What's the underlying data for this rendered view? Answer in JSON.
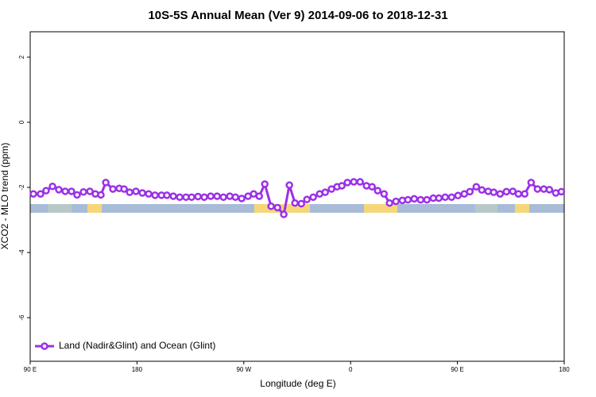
{
  "chart_data": {
    "type": "line",
    "title": "10S-5S Annual Mean (Ver 9)   2014-09-06 to 2018-12-31",
    "x_label": "Longitude (deg E)",
    "y_label": "XCO2 - MLO trend (ppm)",
    "xlim": [
      90,
      540
    ],
    "xticks": [
      {
        "value": 90,
        "label": "90 E"
      },
      180,
      {
        "value": 270,
        "label": "90 W"
      },
      {
        "value": 360,
        "label": "0"
      },
      {
        "value": 450,
        "label": "90 E"
      },
      {
        "value": 540,
        "label": "180"
      }
    ],
    "ylim": [
      -7.34,
      2.78
    ],
    "yticks": [
      -6,
      -4,
      -2,
      0,
      2
    ],
    "legend": "bottom-left",
    "x": [
      92.7,
      98.7,
      103.4,
      108.8,
      114.1,
      119.5,
      124.8,
      129.5,
      134.9,
      140.3,
      144.9,
      149.6,
      153.7,
      159.7,
      165,
      169.1,
      173.8,
      179.1,
      184.5,
      189.8,
      195.2,
      200.6,
      205.2,
      210.6,
      216,
      221.3,
      226,
      231.4,
      236.7,
      242.1,
      247.5,
      252.8,
      258.2,
      262.9,
      268.2,
      273.6,
      278.3,
      283,
      287.7,
      293,
      298.4,
      303.7,
      308.4,
      313.1,
      318.5,
      323.2,
      328.5,
      333.9,
      338.6,
      343.9,
      348.6,
      352.6,
      357.3,
      362.7,
      368,
      373.4,
      378.1,
      382.8,
      388.2,
      392.8,
      398.2,
      403.6,
      408.3,
      413.6,
      419,
      424.3,
      429.7,
      434.4,
      439.7,
      445.1,
      450.5,
      455.8,
      460.5,
      465.9,
      470.6,
      475.9,
      480.6,
      486,
      491.3,
      496.7,
      501.4,
      506.7,
      512.1,
      517.5,
      522.8,
      527.5,
      532.9,
      537.6
    ],
    "series": [
      {
        "name": "Land (Nadir&Glint) and Ocean (Glint)",
        "color": "#9b30e8",
        "values": [
          -2.2,
          -2.2,
          -2.1,
          -1.97,
          -2.07,
          -2.12,
          -2.12,
          -2.23,
          -2.14,
          -2.12,
          -2.2,
          -2.23,
          -1.85,
          -2.05,
          -2.03,
          -2.05,
          -2.15,
          -2.12,
          -2.17,
          -2.2,
          -2.24,
          -2.24,
          -2.24,
          -2.27,
          -2.3,
          -2.3,
          -2.3,
          -2.28,
          -2.3,
          -2.27,
          -2.27,
          -2.3,
          -2.27,
          -2.3,
          -2.34,
          -2.27,
          -2.2,
          -2.27,
          -1.9,
          -2.58,
          -2.62,
          -2.83,
          -1.93,
          -2.48,
          -2.5,
          -2.37,
          -2.3,
          -2.2,
          -2.15,
          -2.05,
          -1.98,
          -1.95,
          -1.85,
          -1.83,
          -1.83,
          -1.95,
          -1.98,
          -2.1,
          -2.2,
          -2.48,
          -2.43,
          -2.4,
          -2.38,
          -2.35,
          -2.38,
          -2.38,
          -2.33,
          -2.33,
          -2.3,
          -2.3,
          -2.25,
          -2.2,
          -2.13,
          -1.98,
          -2.08,
          -2.12,
          -2.15,
          -2.2,
          -2.13,
          -2.12,
          -2.2,
          -2.2,
          -1.85,
          -2.05,
          -2.05,
          -2.07,
          -2.17,
          -2.13
        ]
      }
    ]
  }
}
